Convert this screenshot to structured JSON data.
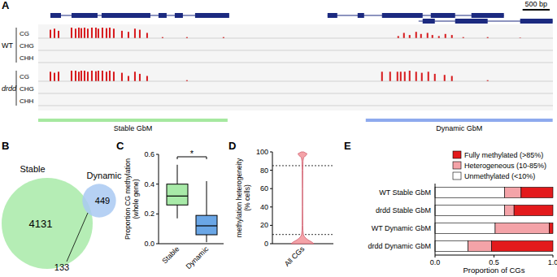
{
  "chart_data": [
    {
      "type": "genome_browser",
      "panel_label": "A",
      "xlim": [
        0,
        9500
      ],
      "ylim": [
        0,
        1
      ],
      "color": "#d7191c",
      "scale_bar": {
        "value": 500,
        "label": "500 bp"
      },
      "genes": [
        {
          "start": 225,
          "end": 3525,
          "exons": [
            [
              225,
              420
            ],
            [
              615,
              1095
            ],
            [
              1170,
              2070
            ],
            [
              2220,
              2370
            ],
            [
              2520,
              2670
            ],
            [
              2895,
              3525
            ]
          ],
          "color": "#1c2a80"
        },
        {
          "start": 5340,
          "end": 8595,
          "exons": [
            [
              5340,
              5520
            ],
            [
              5895,
              6015
            ],
            [
              6345,
              7095
            ],
            [
              7245,
              7695
            ],
            [
              7995,
              8595
            ]
          ],
          "color": "#1c2a80"
        },
        {
          "start": 7020,
          "end": 9495,
          "exons": [
            [
              7095,
              7320
            ],
            [
              7695,
              8295
            ],
            [
              8895,
              9495
            ]
          ],
          "color": "#1c2a80"
        }
      ],
      "samples": [
        {
          "name": "WT",
          "tracks": [
            {
              "name": "CG",
              "positions": [
                225,
                300,
                375,
                615,
                690,
                750,
                795,
                855,
                915,
                990,
                1065,
                1110,
                1185,
                1260,
                1320,
                1395,
                1545,
                1665,
                1785,
                1875,
                2010,
                2295,
                2745,
                3420,
                6645,
                6750,
                6855,
                6975,
                7065,
                7185,
                7275,
                7395,
                7515,
                7635,
                7845,
                8295,
                8895
              ],
              "values": [
                0.8,
                0.9,
                0.7,
                1,
                0.9,
                1,
                0.95,
                1,
                0.9,
                1,
                1,
                0.9,
                1,
                0.95,
                1,
                0.9,
                0.7,
                0.6,
                0.9,
                0.8,
                0.5,
                0.1,
                0.1,
                0.1,
                0.2,
                0.5,
                0.3,
                0.6,
                0.4,
                0.5,
                0.3,
                0.2,
                0.4,
                0.3,
                0.1,
                0.1,
                0.05
              ]
            },
            {
              "name": "CHG",
              "positions": [],
              "values": []
            },
            {
              "name": "CHH",
              "positions": [],
              "values": []
            }
          ]
        },
        {
          "name": "drdd",
          "tracks": [
            {
              "name": "CG",
              "positions": [
                225,
                300,
                375,
                615,
                690,
                750,
                795,
                855,
                915,
                990,
                1065,
                1110,
                1185,
                1260,
                1320,
                1395,
                1545,
                1665,
                1785,
                1875,
                2010,
                2745,
                6345,
                6495,
                6630,
                6690,
                6765,
                6855,
                6975,
                7080,
                7200,
                7320,
                7500,
                7635,
                8295
              ],
              "values": [
                0.9,
                0.8,
                0.9,
                1,
                1,
                0.9,
                1,
                1,
                0.9,
                1,
                0.95,
                1,
                1,
                0.9,
                1,
                0.9,
                0.8,
                0.5,
                0.9,
                0.7,
                0.5,
                0.1,
                0.9,
                0.9,
                0.9,
                0.9,
                0.9,
                1,
                0.9,
                0.8,
                0.9,
                0.7,
                0.6,
                0.5,
                0.1
              ]
            },
            {
              "name": "CHG",
              "positions": [],
              "values": []
            },
            {
              "name": "CHH",
              "positions": [],
              "values": []
            }
          ]
        }
      ],
      "regions": [
        {
          "name": "Stable GbM",
          "start": 0,
          "end": 3495,
          "color": "#a6e8a0"
        },
        {
          "name": "Dynamic GbM",
          "start": 6045,
          "end": 9495,
          "color": "#8eaaee"
        }
      ]
    },
    {
      "type": "venn",
      "panel_label": "B",
      "sets": [
        {
          "name": "Stable",
          "value": 4131,
          "color": "#a8eaa8"
        },
        {
          "name": "Dynamic",
          "value": 449,
          "color": "#a9c9f2"
        }
      ],
      "overlap": 133
    },
    {
      "type": "box",
      "panel_label": "C",
      "ylabel": [
        "Proportion CG methylation",
        "(whole gene)"
      ],
      "categories": [
        "Stable",
        "Dynamic"
      ],
      "colors": [
        "#a8eaa8",
        "#6aa6e6"
      ],
      "min": [
        0.17,
        0.01
      ],
      "q1": [
        0.26,
        0.06
      ],
      "median": [
        0.32,
        0.12
      ],
      "q3": [
        0.4,
        0.19
      ],
      "max": [
        0.53,
        0.42
      ],
      "ylim": [
        0,
        0.6
      ],
      "yticks": [
        {
          "value": 0,
          "label": "0.0"
        },
        {
          "value": 0.2,
          "label": "0.2"
        },
        {
          "value": 0.4,
          "label": "0.4"
        },
        {
          "value": 0.6,
          "label": "0.6"
        }
      ],
      "annotations": [
        {
          "text": "*"
        }
      ]
    },
    {
      "type": "violin",
      "panel_label": "D",
      "ylabel": [
        "methylation heterogeneity",
        "(% cells)"
      ],
      "categories": [
        "All CGs"
      ],
      "color": "#f4a3a8",
      "violin": {
        "y": [
          0,
          2,
          4,
          6,
          8,
          10,
          15,
          20,
          40,
          60,
          80,
          90,
          94,
          96,
          98,
          100
        ],
        "density": [
          1,
          0.8,
          0.5,
          0.3,
          0.15,
          0.08,
          0.04,
          0.03,
          0.02,
          0.02,
          0.03,
          0.05,
          0.1,
          0.3,
          0.4,
          0.1
        ]
      },
      "reference_lines": [
        10,
        85
      ],
      "ylim": [
        0,
        100
      ],
      "yticks": [
        0,
        20,
        40,
        60,
        80,
        100
      ]
    },
    {
      "type": "bar",
      "panel_label": "E",
      "orientation": "horizontal",
      "stacked": true,
      "legend": "top-right",
      "xlabel": "Proportion of CGs",
      "categories": [
        "WT Stable GbM",
        "drdd Stable GbM",
        "WT Dynamic GbM",
        "drdd Dynamic GbM"
      ],
      "series": [
        {
          "name": "Fully methylated (>85%)",
          "color": "#e31a1c",
          "values": [
            0.27,
            0.33,
            0.03,
            0.52
          ]
        },
        {
          "name": "Heterogeneous (10-85%)",
          "color": "#f4a3a8",
          "values": [
            0.14,
            0.08,
            0.46,
            0.2
          ]
        },
        {
          "name": "Unmethylated (<10%)",
          "color": "#ffffff",
          "values": [
            0.59,
            0.59,
            0.51,
            0.28
          ]
        }
      ],
      "xlim": [
        0,
        1
      ],
      "xticks": [
        {
          "value": 0,
          "label": "0.0"
        },
        {
          "value": 0.5,
          "label": "0.5"
        },
        {
          "value": 1,
          "label": "1.0"
        }
      ]
    }
  ]
}
